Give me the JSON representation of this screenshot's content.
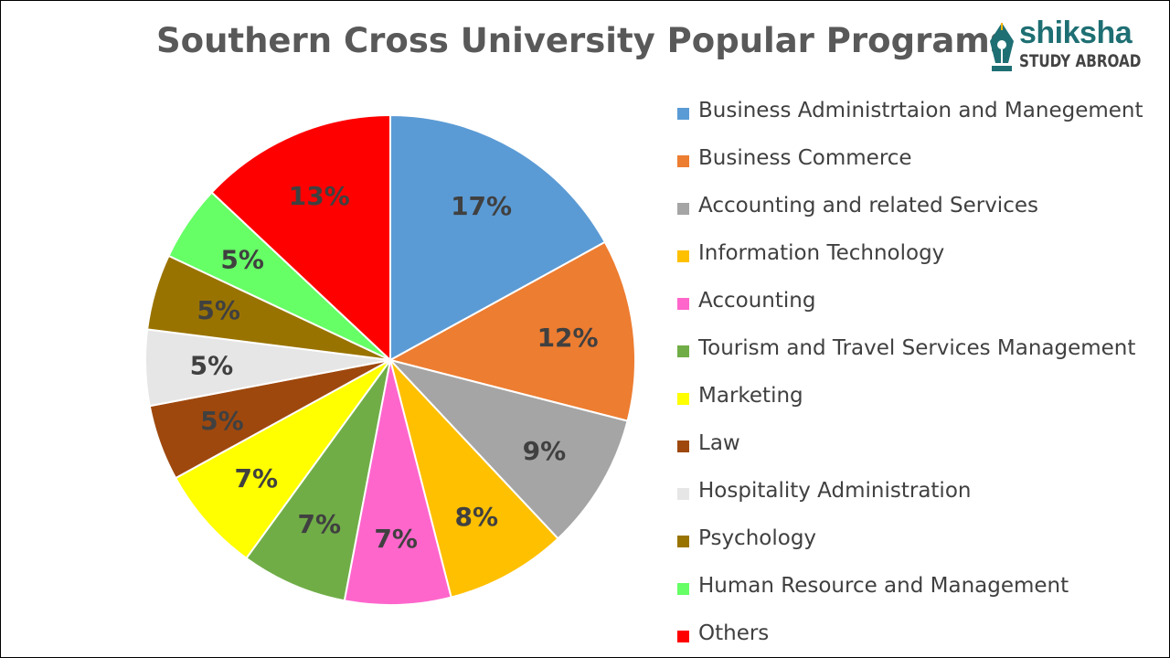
{
  "chart_data": {
    "type": "pie",
    "title": "Southern Cross University Popular Programs",
    "series": [
      {
        "name": "Business Administrtaion and Manegement",
        "value": 17,
        "label": "17%",
        "color": "#5b9bd5"
      },
      {
        "name": "Business Commerce",
        "value": 12,
        "label": "12%",
        "color": "#ed7d31"
      },
      {
        "name": "Accounting and related Services",
        "value": 9,
        "label": "9%",
        "color": "#a5a5a5"
      },
      {
        "name": "Information Technology",
        "value": 8,
        "label": "8%",
        "color": "#ffc000"
      },
      {
        "name": "Accounting",
        "value": 7,
        "label": "7%",
        "color": "#ff66cc"
      },
      {
        "name": "Tourism and Travel Services Management",
        "value": 7,
        "label": "7%",
        "color": "#70ad47"
      },
      {
        "name": "Marketing",
        "value": 7,
        "label": "7%",
        "color": "#ffff00"
      },
      {
        "name": "Law",
        "value": 5,
        "label": "5%",
        "color": "#9e480e"
      },
      {
        "name": "Hospitality Administration",
        "value": 5,
        "label": "5%",
        "color": "#e7e6e6"
      },
      {
        "name": "Psychology",
        "value": 5,
        "label": "5%",
        "color": "#997300"
      },
      {
        "name": "Human Resource and Management",
        "value": 5,
        "label": "5%",
        "color": "#66ff66"
      },
      {
        "name": "Others",
        "value": 13,
        "label": "13%",
        "color": "#ff0000"
      }
    ],
    "legend_position": "right"
  },
  "logo": {
    "brand": "shiksha",
    "tagline": "STUDY ABROAD",
    "color": "#1e6f73",
    "icon": "pen-nib-icon"
  }
}
